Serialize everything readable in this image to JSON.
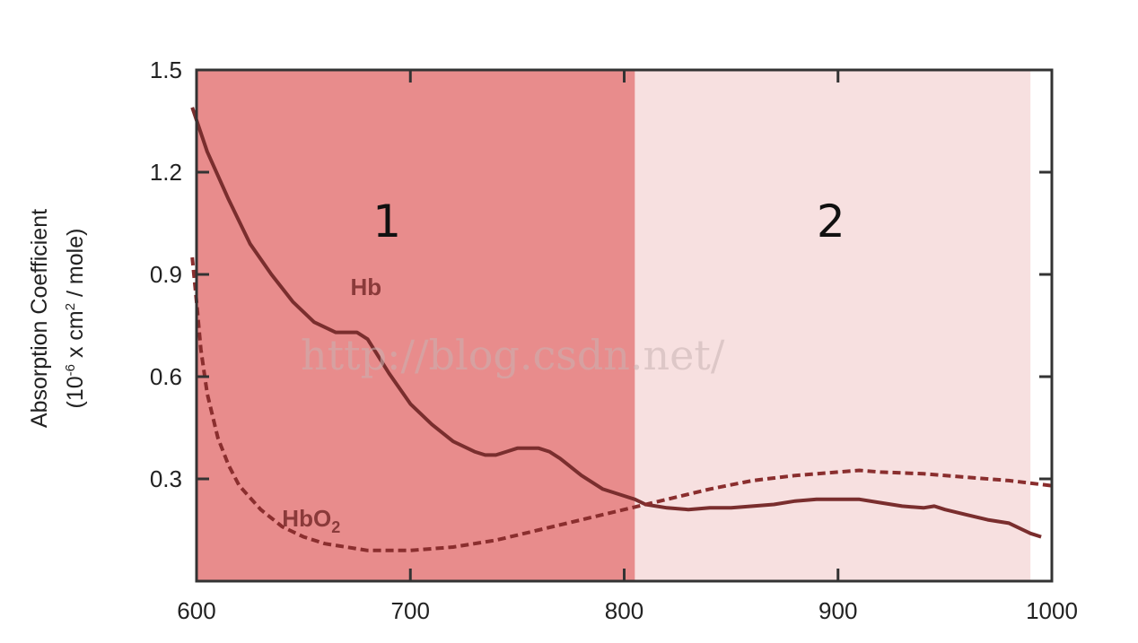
{
  "chart_data": {
    "type": "line",
    "ylabel": "Absorption Coefficient",
    "ylabel_unit_prefix": "(10",
    "ylabel_unit_exponent": "-6",
    "ylabel_unit_mid": " x cm",
    "ylabel_unit_exponent2": "2",
    "ylabel_unit_suffix": " / mole)",
    "xlim": [
      600,
      1000
    ],
    "ylim": [
      0,
      1.5
    ],
    "x_ticks": [
      600,
      700,
      800,
      900,
      1000
    ],
    "y_ticks": [
      0.3,
      0.6,
      0.9,
      1.2,
      1.5
    ],
    "x_tick_labels": [
      "600",
      "700",
      "800",
      "900",
      "1000"
    ],
    "y_tick_labels": [
      "0.3",
      "0.6",
      "0.9",
      "1.2",
      "1.5"
    ],
    "grid": false,
    "regions": [
      {
        "label": "1",
        "x_start": 600,
        "x_end": 805,
        "color": "#e88c8c"
      },
      {
        "label": "2",
        "x_start": 805,
        "x_end": 990,
        "color": "#f7e0e0"
      }
    ],
    "series": [
      {
        "name": "Hb",
        "style": "solid",
        "color": "#7a2e2e",
        "x": [
          598,
          605,
          615,
          625,
          635,
          645,
          655,
          665,
          670,
          675,
          680,
          690,
          700,
          710,
          720,
          730,
          735,
          740,
          745,
          750,
          755,
          760,
          765,
          770,
          780,
          790,
          800,
          805,
          810,
          820,
          830,
          840,
          850,
          860,
          870,
          880,
          890,
          900,
          910,
          920,
          930,
          940,
          945,
          950,
          960,
          970,
          980,
          990,
          995
        ],
        "y": [
          1.39,
          1.26,
          1.12,
          0.99,
          0.9,
          0.82,
          0.76,
          0.73,
          0.73,
          0.73,
          0.71,
          0.61,
          0.52,
          0.46,
          0.41,
          0.38,
          0.37,
          0.37,
          0.38,
          0.39,
          0.39,
          0.39,
          0.38,
          0.36,
          0.31,
          0.27,
          0.25,
          0.24,
          0.225,
          0.215,
          0.21,
          0.215,
          0.215,
          0.22,
          0.225,
          0.235,
          0.24,
          0.24,
          0.24,
          0.23,
          0.22,
          0.215,
          0.22,
          0.21,
          0.195,
          0.18,
          0.17,
          0.14,
          0.13
        ],
        "label": "Hb",
        "label_x": 672,
        "label_y": 0.84
      },
      {
        "name": "HbO2",
        "style": "dashed",
        "color": "#8a2e2e",
        "x": [
          598,
          600,
          602,
          605,
          610,
          615,
          620,
          630,
          640,
          650,
          660,
          670,
          680,
          690,
          700,
          720,
          740,
          760,
          780,
          800,
          820,
          840,
          860,
          880,
          900,
          910,
          920,
          940,
          960,
          980,
          1000
        ],
        "y": [
          0.95,
          0.82,
          0.68,
          0.55,
          0.42,
          0.34,
          0.28,
          0.21,
          0.16,
          0.13,
          0.11,
          0.1,
          0.09,
          0.09,
          0.09,
          0.1,
          0.12,
          0.15,
          0.18,
          0.21,
          0.24,
          0.27,
          0.295,
          0.31,
          0.32,
          0.325,
          0.32,
          0.315,
          0.305,
          0.295,
          0.28
        ],
        "label": "HbO",
        "label_sub": "2",
        "label_x": 640,
        "label_y": 0.16
      }
    ]
  },
  "watermark": "http://blog.csdn.net/"
}
